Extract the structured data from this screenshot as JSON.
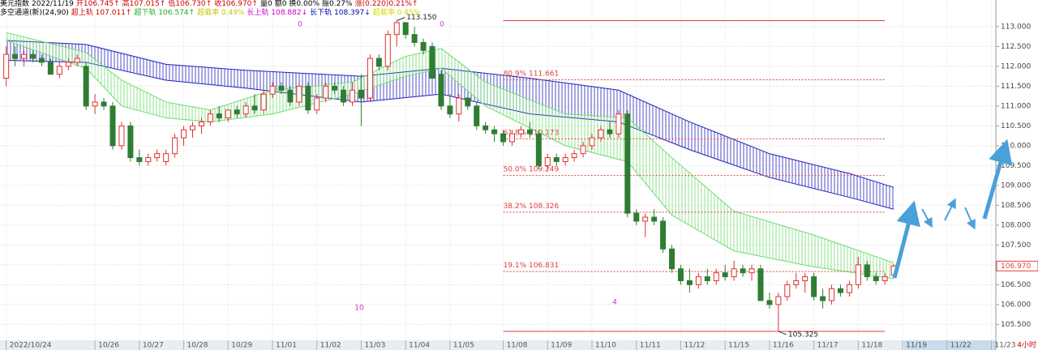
{
  "chart_data": {
    "type": "candlestick",
    "header": {
      "line1": [
        {
          "text": "美元指数",
          "color": "#000000"
        },
        {
          "text": "2022/11/19",
          "color": "#000000"
        },
        {
          "text": "开106.745↑",
          "color": "#d00000"
        },
        {
          "text": "高107.015↑",
          "color": "#d00000"
        },
        {
          "text": "低106.730↑",
          "color": "#d00000"
        },
        {
          "text": "收106.970↑",
          "color": "#d00000"
        },
        {
          "text": "量0",
          "color": "#000000"
        },
        {
          "text": "额0",
          "color": "#000000"
        },
        {
          "text": "换0.00%",
          "color": "#000000"
        },
        {
          "text": "振0.27%",
          "color": "#000000"
        },
        {
          "text": "涨(0.220)0.21%↑",
          "color": "#d00000"
        }
      ],
      "line2": [
        {
          "text": "多空通道(新)(24,90)",
          "color": "#000000"
        },
        {
          "text": "超上轨 107.011↑",
          "color": "#d00000"
        },
        {
          "text": "超下轨 106.574↑",
          "color": "#22aa22"
        },
        {
          "text": "超载率 0.49%",
          "color": "#c8c800"
        },
        {
          "text": "长上轨 108.882↓",
          "color": "#cc00cc"
        },
        {
          "text": "长下轨 108.397↓",
          "color": "#0000aa"
        },
        {
          "text": "超载率 0.45%",
          "color": "#d8d800"
        }
      ]
    },
    "up_color": "#e03030",
    "down_color": "#2e7d32",
    "candles": [
      [
        111.7,
        112.5,
        111.5,
        112.3
      ],
      [
        112.3,
        112.5,
        112.0,
        112.2
      ],
      [
        112.2,
        112.4,
        112.0,
        112.3
      ],
      [
        112.3,
        112.4,
        112.1,
        112.2
      ],
      [
        112.2,
        112.3,
        112.0,
        112.1
      ],
      [
        112.1,
        112.2,
        111.8,
        111.8
      ],
      [
        111.8,
        112.1,
        111.7,
        112.0
      ],
      [
        112.0,
        112.2,
        111.9,
        112.1
      ],
      [
        112.1,
        112.3,
        112.0,
        112.2
      ],
      [
        112.0,
        112.1,
        110.9,
        111.0
      ],
      [
        111.0,
        111.3,
        110.8,
        111.1
      ],
      [
        111.1,
        111.2,
        110.9,
        111.0
      ],
      [
        111.0,
        111.1,
        109.9,
        110.0
      ],
      [
        110.0,
        110.6,
        109.9,
        110.5
      ],
      [
        110.5,
        110.6,
        109.6,
        109.7
      ],
      [
        109.7,
        109.9,
        109.5,
        109.6
      ],
      [
        109.6,
        109.8,
        109.5,
        109.7
      ],
      [
        109.7,
        109.9,
        109.6,
        109.8
      ],
      [
        109.6,
        109.9,
        109.5,
        109.8
      ],
      [
        109.8,
        110.3,
        109.7,
        110.2
      ],
      [
        110.2,
        110.5,
        110.0,
        110.4
      ],
      [
        110.4,
        110.6,
        110.2,
        110.5
      ],
      [
        110.5,
        110.7,
        110.3,
        110.6
      ],
      [
        110.6,
        110.9,
        110.5,
        110.8
      ],
      [
        110.8,
        111.0,
        110.6,
        110.7
      ],
      [
        110.7,
        110.9,
        110.6,
        110.9
      ],
      [
        110.9,
        111.0,
        110.7,
        110.8
      ],
      [
        110.8,
        111.1,
        110.7,
        111.0
      ],
      [
        111.0,
        111.3,
        110.8,
        110.9
      ],
      [
        110.9,
        111.4,
        110.8,
        111.3
      ],
      [
        111.3,
        111.6,
        111.2,
        111.5
      ],
      [
        111.5,
        111.6,
        111.3,
        111.4
      ],
      [
        111.4,
        111.5,
        111.0,
        111.1
      ],
      [
        111.1,
        111.6,
        111.0,
        111.5
      ],
      [
        111.5,
        111.6,
        110.8,
        110.9
      ],
      [
        110.9,
        111.3,
        110.8,
        111.2
      ],
      [
        111.2,
        111.6,
        111.1,
        111.5
      ],
      [
        111.5,
        111.6,
        111.3,
        111.4
      ],
      [
        111.4,
        111.5,
        111.0,
        111.1
      ],
      [
        111.1,
        111.6,
        111.0,
        111.4
      ],
      [
        111.4,
        111.8,
        110.5,
        111.2
      ],
      [
        111.2,
        112.3,
        111.1,
        112.2
      ],
      [
        112.2,
        112.3,
        111.9,
        112.0
      ],
      [
        112.0,
        112.9,
        111.9,
        112.8
      ],
      [
        112.8,
        113.15,
        112.5,
        113.1
      ],
      [
        113.1,
        113.1,
        112.7,
        112.8
      ],
      [
        112.8,
        113.0,
        112.5,
        112.6
      ],
      [
        112.6,
        112.7,
        112.3,
        112.4
      ],
      [
        112.5,
        112.6,
        111.6,
        111.7
      ],
      [
        111.8,
        111.9,
        110.9,
        111.0
      ],
      [
        111.0,
        111.3,
        110.7,
        110.8
      ],
      [
        110.8,
        111.3,
        110.6,
        111.2
      ],
      [
        111.2,
        111.3,
        110.9,
        111.0
      ],
      [
        111.0,
        111.1,
        110.4,
        110.5
      ],
      [
        110.5,
        110.6,
        110.3,
        110.4
      ],
      [
        110.4,
        110.5,
        110.1,
        110.3
      ],
      [
        110.3,
        110.4,
        110.0,
        110.1
      ],
      [
        110.1,
        110.4,
        110.0,
        110.3
      ],
      [
        110.3,
        110.5,
        110.2,
        110.4
      ],
      [
        110.4,
        110.6,
        110.2,
        110.3
      ],
      [
        110.3,
        110.4,
        109.4,
        109.5
      ],
      [
        109.5,
        109.8,
        109.4,
        109.7
      ],
      [
        109.7,
        109.8,
        109.5,
        109.6
      ],
      [
        109.6,
        109.8,
        109.5,
        109.7
      ],
      [
        109.7,
        109.9,
        109.6,
        109.8
      ],
      [
        109.8,
        110.1,
        109.7,
        110.0
      ],
      [
        110.0,
        110.3,
        109.9,
        110.2
      ],
      [
        110.2,
        110.5,
        110.1,
        110.4
      ],
      [
        110.4,
        110.6,
        110.2,
        110.3
      ],
      [
        110.3,
        110.9,
        110.2,
        110.8
      ],
      [
        110.8,
        110.9,
        108.2,
        108.3
      ],
      [
        108.3,
        108.4,
        108.0,
        108.1
      ],
      [
        108.1,
        108.3,
        107.7,
        108.2
      ],
      [
        108.2,
        108.4,
        108.0,
        108.1
      ],
      [
        108.1,
        108.2,
        107.3,
        107.4
      ],
      [
        107.4,
        107.5,
        106.8,
        106.9
      ],
      [
        106.9,
        107.0,
        106.5,
        106.6
      ],
      [
        106.6,
        106.9,
        106.3,
        106.5
      ],
      [
        106.5,
        106.8,
        106.4,
        106.7
      ],
      [
        106.7,
        106.9,
        106.5,
        106.6
      ],
      [
        106.6,
        106.9,
        106.5,
        106.8
      ],
      [
        106.8,
        107.0,
        106.6,
        106.7
      ],
      [
        106.7,
        107.1,
        106.6,
        106.9
      ],
      [
        106.9,
        107.0,
        106.7,
        106.8
      ],
      [
        106.8,
        107.0,
        106.6,
        106.9
      ],
      [
        106.9,
        107.0,
        106.1,
        106.1
      ],
      [
        106.1,
        106.3,
        105.9,
        106.0
      ],
      [
        106.0,
        106.3,
        105.325,
        106.2
      ],
      [
        106.2,
        106.6,
        106.1,
        106.5
      ],
      [
        106.5,
        106.8,
        106.4,
        106.6
      ],
      [
        106.6,
        106.8,
        106.3,
        106.7
      ],
      [
        106.7,
        106.8,
        106.1,
        106.2
      ],
      [
        106.2,
        106.4,
        105.9,
        106.1
      ],
      [
        106.1,
        106.5,
        106.0,
        106.4
      ],
      [
        106.4,
        106.5,
        106.2,
        106.3
      ],
      [
        106.3,
        106.6,
        106.2,
        106.5
      ],
      [
        106.5,
        107.2,
        106.4,
        107.0
      ],
      [
        107.0,
        107.1,
        106.6,
        106.7
      ],
      [
        106.7,
        106.8,
        106.5,
        106.6
      ],
      [
        106.6,
        106.8,
        106.5,
        106.7
      ],
      [
        106.745,
        107.015,
        106.73,
        106.97
      ]
    ],
    "bands": [
      {
        "color": "#2222bb",
        "x": [
          0,
          9,
          18,
          27,
          40,
          49,
          59,
          69,
          77,
          86,
          95,
          100
        ],
        "upper": [
          112.65,
          112.55,
          112.05,
          111.9,
          111.75,
          111.95,
          111.7,
          111.4,
          110.6,
          109.8,
          109.3,
          108.95
        ],
        "lower": [
          112.15,
          112.1,
          111.65,
          111.45,
          111.1,
          111.3,
          110.8,
          110.6,
          109.9,
          109.2,
          108.7,
          108.4
        ]
      },
      {
        "color": "#6fdc6f",
        "x": [
          0,
          9,
          13,
          18,
          23,
          30,
          39,
          45,
          49,
          54,
          63,
          70,
          75,
          82,
          91,
          100
        ],
        "upper": [
          112.85,
          112.35,
          111.65,
          111.1,
          110.9,
          111.4,
          111.6,
          112.25,
          112.45,
          111.6,
          110.8,
          110.7,
          109.7,
          108.35,
          107.75,
          107.05
        ],
        "lower": [
          112.65,
          111.95,
          111.0,
          110.7,
          110.6,
          110.8,
          111.3,
          111.75,
          111.95,
          111.0,
          110.0,
          109.6,
          108.25,
          107.35,
          106.95,
          106.65
        ]
      }
    ],
    "fib_levels": [
      {
        "ratio": "80.9%",
        "value": 111.661
      },
      {
        "ratio": "61.8%",
        "value": 110.173
      },
      {
        "ratio": "50.0%",
        "value": 109.249
      },
      {
        "ratio": "38.2%",
        "value": 108.326
      },
      {
        "ratio": "19.1%",
        "value": 106.831
      }
    ],
    "extremes": [
      {
        "value": 113.15,
        "label": "113.150"
      },
      {
        "value": 105.325,
        "label": "105.325"
      }
    ],
    "price_tag": {
      "value": 106.97,
      "label": "106.970"
    },
    "markers": [
      "0",
      "0",
      "10",
      "4"
    ],
    "timeframe": "4小时",
    "ylim": [
      105.1,
      113.67
    ],
    "yticks": [
      {
        "value": 113,
        "label": "113.000"
      },
      {
        "value": 112.5,
        "label": "112.500"
      },
      {
        "value": 112,
        "label": "112.000"
      },
      {
        "value": 111.5,
        "label": "111.500"
      },
      {
        "value": 111,
        "label": "111.000"
      },
      {
        "value": 110.5,
        "label": "110.500"
      },
      {
        "value": 110,
        "label": "110.000"
      },
      {
        "value": 109.5,
        "label": "109.500"
      },
      {
        "value": 109,
        "label": "109.000"
      },
      {
        "value": 108.5,
        "label": "108.500"
      },
      {
        "value": 108,
        "label": "108.000"
      },
      {
        "value": 107.5,
        "label": "107.500"
      },
      {
        "value": 107,
        "label": "107.000"
      },
      {
        "value": 106.5,
        "label": "106.500"
      },
      {
        "value": 106,
        "label": "106.000"
      },
      {
        "value": 105.5,
        "label": "105.500"
      }
    ],
    "xlim": [
      -0.7,
      111.5
    ],
    "xticks": [
      {
        "value": 0,
        "label": "2022/10/24"
      },
      {
        "value": 10,
        "label": "10/26"
      },
      {
        "value": 15,
        "label": "10/27"
      },
      {
        "value": 20,
        "label": "10/28"
      },
      {
        "value": 25,
        "label": "10/29"
      },
      {
        "value": 30,
        "label": "11/01"
      },
      {
        "value": 35,
        "label": "11/02"
      },
      {
        "value": 40,
        "label": "11/03"
      },
      {
        "value": 45,
        "label": "11/04"
      },
      {
        "value": 50,
        "label": "11/05"
      },
      {
        "value": 56,
        "label": "11/08"
      },
      {
        "value": 61,
        "label": "11/09"
      },
      {
        "value": 66,
        "label": "11/10"
      },
      {
        "value": 71,
        "label": "11/11"
      },
      {
        "value": 76,
        "label": "11/12"
      },
      {
        "value": 81,
        "label": "11/15"
      },
      {
        "value": 86,
        "label": "11/16"
      },
      {
        "value": 91,
        "label": "11/17"
      },
      {
        "value": 96,
        "label": "11/18"
      },
      {
        "value": 101,
        "label": "11/19"
      },
      {
        "value": 106,
        "label": "11/22"
      },
      {
        "value": 111,
        "label": "11/23"
      }
    ],
    "grid": true
  }
}
